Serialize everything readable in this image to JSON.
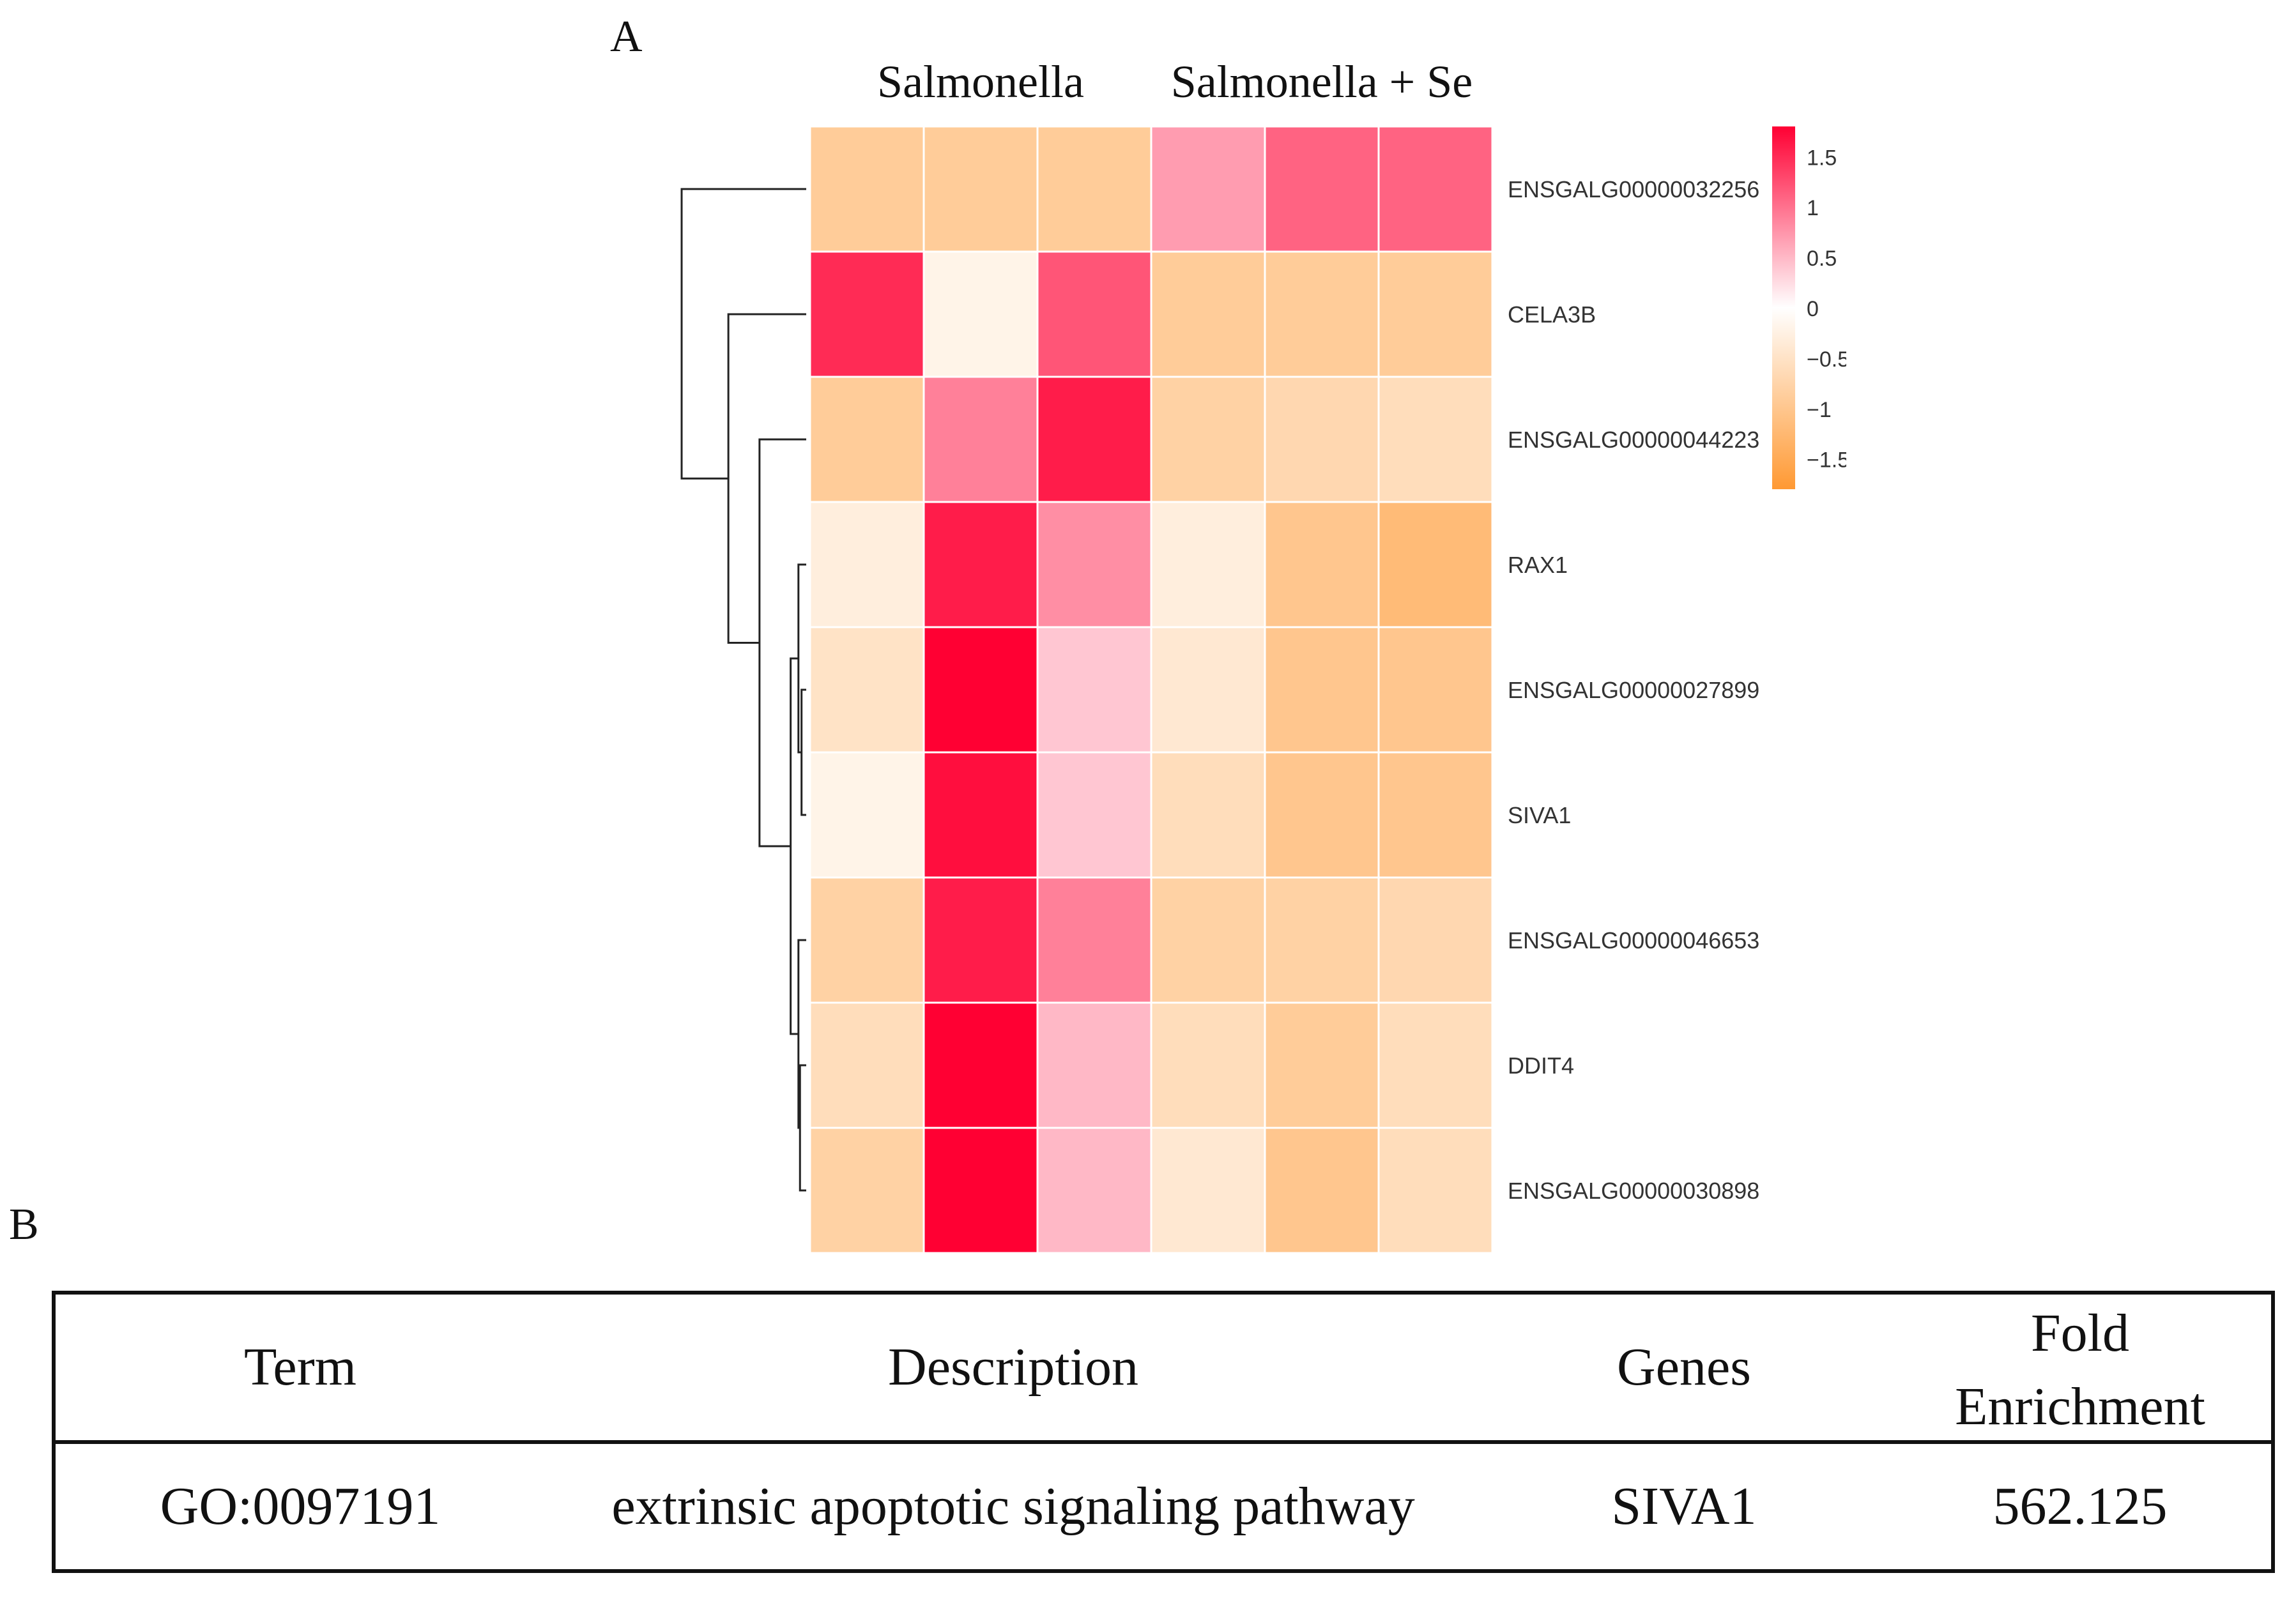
{
  "panels": {
    "a_label": "A",
    "b_label": "B"
  },
  "colors": {
    "low": "#FF9933",
    "mid": "#FFFFFF",
    "high": "#FF0033",
    "grid": "#FFFFFF",
    "dendro": "#222222"
  },
  "chart_data": {
    "type": "heatmap",
    "column_groups": [
      {
        "label": "Salmonella",
        "columns": [
          0,
          1,
          2
        ]
      },
      {
        "label": "Salmonella + Se",
        "columns": [
          3,
          4,
          5
        ]
      }
    ],
    "rows": [
      "ENSGALG00000032256",
      "CELA3B",
      "ENSGALG00000044223",
      "RAX1",
      "ENSGALG00000027899",
      "SIVA1",
      "ENSGALG00000046653",
      "DDIT4",
      "ENSGALG00000030898"
    ],
    "values": [
      [
        -0.9,
        -0.9,
        -0.9,
        0.7,
        1.1,
        1.1
      ],
      [
        1.5,
        -0.2,
        1.2,
        -0.9,
        -0.9,
        -0.9
      ],
      [
        -0.9,
        0.9,
        1.6,
        -0.8,
        -0.7,
        -0.6
      ],
      [
        -0.3,
        1.6,
        0.8,
        -0.3,
        -1.0,
        -1.2
      ],
      [
        -0.5,
        1.8,
        0.4,
        -0.4,
        -1.0,
        -1.0
      ],
      [
        -0.2,
        1.7,
        0.4,
        -0.6,
        -1.0,
        -1.0
      ],
      [
        -0.8,
        1.6,
        0.9,
        -0.8,
        -0.8,
        -0.7
      ],
      [
        -0.6,
        1.8,
        0.5,
        -0.6,
        -0.9,
        -0.6
      ],
      [
        -0.8,
        1.8,
        0.5,
        -0.4,
        -1.0,
        -0.6
      ]
    ],
    "color_range": [
      -1.8,
      1.8
    ],
    "legend": {
      "ticks": [
        1.5,
        1,
        0.5,
        0,
        -0.5,
        -1,
        -1.5
      ],
      "tick_labels": [
        "1.5",
        "1",
        "0.5",
        "0",
        "−0.5",
        "−1",
        "−1.5"
      ],
      "placement": "right"
    },
    "dendrogram": {
      "merges": [
        {
          "a": 4,
          "b": 5,
          "height": 0.03
        },
        {
          "a": 7,
          "b": 8,
          "height": 0.04
        },
        {
          "a": 3,
          "b": "m0",
          "height": 0.05
        },
        {
          "a": 6,
          "b": "m1",
          "height": 0.05
        },
        {
          "a": "m2",
          "b": "m3",
          "height": 0.1
        },
        {
          "a": 2,
          "b": "m4",
          "height": 0.3
        },
        {
          "a": 1,
          "b": "m5",
          "height": 0.5
        },
        {
          "a": 0,
          "b": "m6",
          "height": 0.8
        }
      ]
    }
  },
  "table": {
    "headers": {
      "term": "Term",
      "description": "Description",
      "genes": "Genes",
      "fold_line1": "Fold",
      "fold_line2": "Enrichment"
    },
    "rows": [
      {
        "term": "GO:0097191",
        "description": "extrinsic apoptotic signaling pathway",
        "genes": "SIVA1",
        "fold_enrichment": "562.125"
      }
    ]
  }
}
